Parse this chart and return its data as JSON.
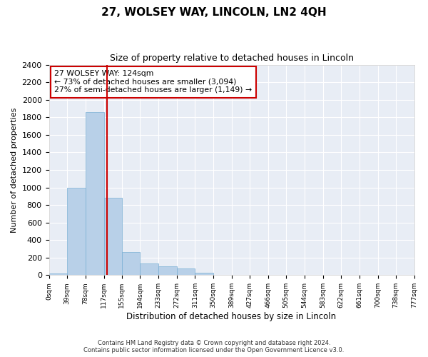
{
  "title": "27, WOLSEY WAY, LINCOLN, LN2 4QH",
  "subtitle": "Size of property relative to detached houses in Lincoln",
  "xlabel": "Distribution of detached houses by size in Lincoln",
  "ylabel": "Number of detached properties",
  "bar_color": "#b8d0e8",
  "bar_edge_color": "#7aafd4",
  "background_color": "#e8edf5",
  "grid_color": "#ffffff",
  "annotation_box_color": "#ffffff",
  "annotation_border_color": "#cc0000",
  "vline_color": "#cc0000",
  "property_size": 124,
  "annotation_line1": "27 WOLSEY WAY: 124sqm",
  "annotation_line2": "← 73% of detached houses are smaller (3,094)",
  "annotation_line3": "27% of semi-detached houses are larger (1,149) →",
  "ylim": [
    0,
    2400
  ],
  "yticks": [
    0,
    200,
    400,
    600,
    800,
    1000,
    1200,
    1400,
    1600,
    1800,
    2000,
    2200,
    2400
  ],
  "bin_edges": [
    0,
    39,
    78,
    117,
    155,
    194,
    233,
    272,
    311,
    350,
    389,
    427,
    466,
    505,
    544,
    583,
    622,
    661,
    700,
    738,
    777
  ],
  "bin_labels": [
    "0sqm",
    "39sqm",
    "78sqm",
    "117sqm",
    "155sqm",
    "194sqm",
    "233sqm",
    "272sqm",
    "311sqm",
    "350sqm",
    "389sqm",
    "427sqm",
    "466sqm",
    "505sqm",
    "544sqm",
    "583sqm",
    "622sqm",
    "661sqm",
    "700sqm",
    "738sqm",
    "777sqm"
  ],
  "bar_heights": [
    20,
    1000,
    1860,
    880,
    260,
    130,
    100,
    75,
    30,
    0,
    0,
    0,
    0,
    0,
    0,
    0,
    0,
    0,
    0,
    0
  ],
  "footer_line1": "Contains HM Land Registry data © Crown copyright and database right 2024.",
  "footer_line2": "Contains public sector information licensed under the Open Government Licence v3.0."
}
